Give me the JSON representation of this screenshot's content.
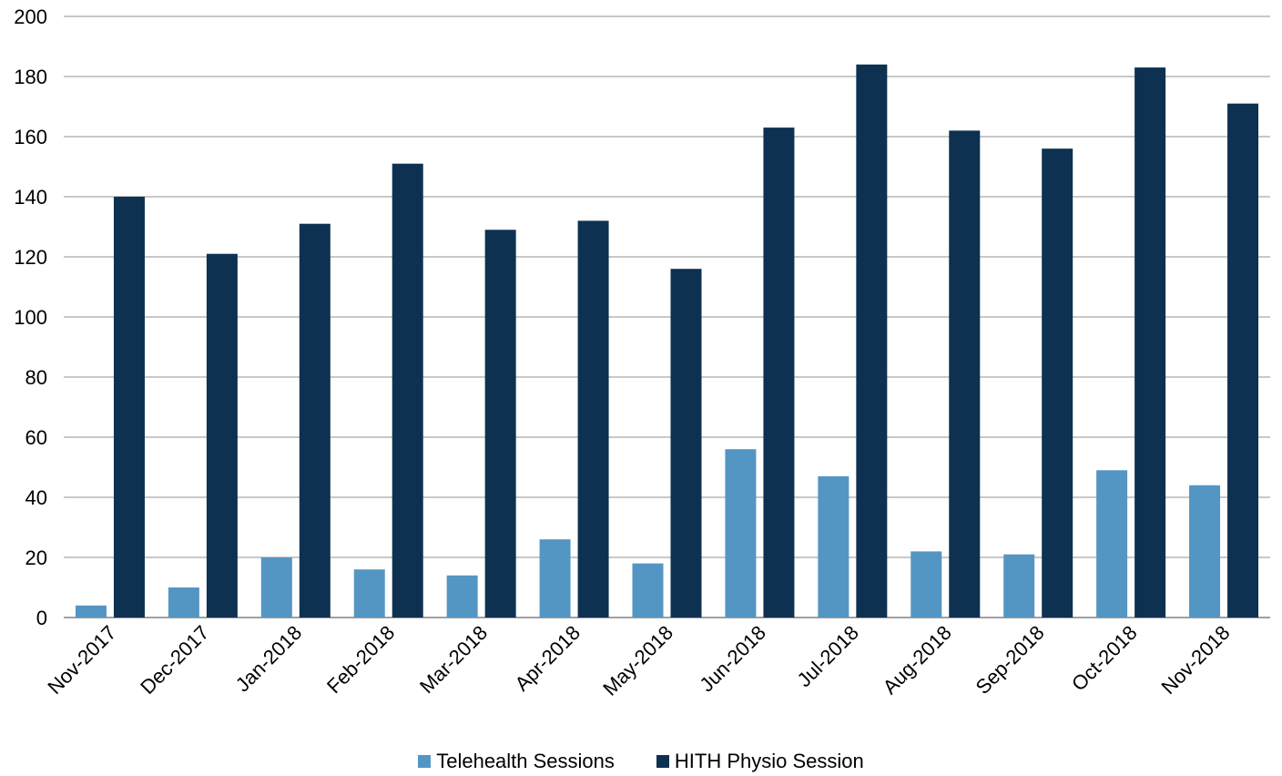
{
  "chart_data": {
    "type": "bar",
    "categories": [
      "Nov-2017",
      "Dec-2017",
      "Jan-2018",
      "Feb-2018",
      "Mar-2018",
      "Apr-2018",
      "May-2018",
      "Jun-2018",
      "Jul-2018",
      "Aug-2018",
      "Sep-2018",
      "Oct-2018",
      "Nov-2018"
    ],
    "series": [
      {
        "name": "Telehealth Sessions",
        "color": "#5496c3",
        "values": [
          4,
          10,
          20,
          16,
          14,
          26,
          18,
          56,
          47,
          22,
          21,
          49,
          44
        ]
      },
      {
        "name": "HITH Physio Session",
        "color": "#0e3152",
        "values": [
          140,
          121,
          131,
          151,
          129,
          132,
          116,
          163,
          184,
          162,
          156,
          183,
          171
        ]
      }
    ],
    "ylim": [
      0,
      200
    ],
    "yticks": [
      0,
      20,
      40,
      60,
      80,
      100,
      120,
      140,
      160,
      180,
      200
    ],
    "grid": true,
    "legend_position": "bottom",
    "title": "",
    "xlabel": "",
    "ylabel": ""
  },
  "colors": {
    "gridline": "#a6a6a6",
    "text": "#000000",
    "background": "#ffffff"
  }
}
